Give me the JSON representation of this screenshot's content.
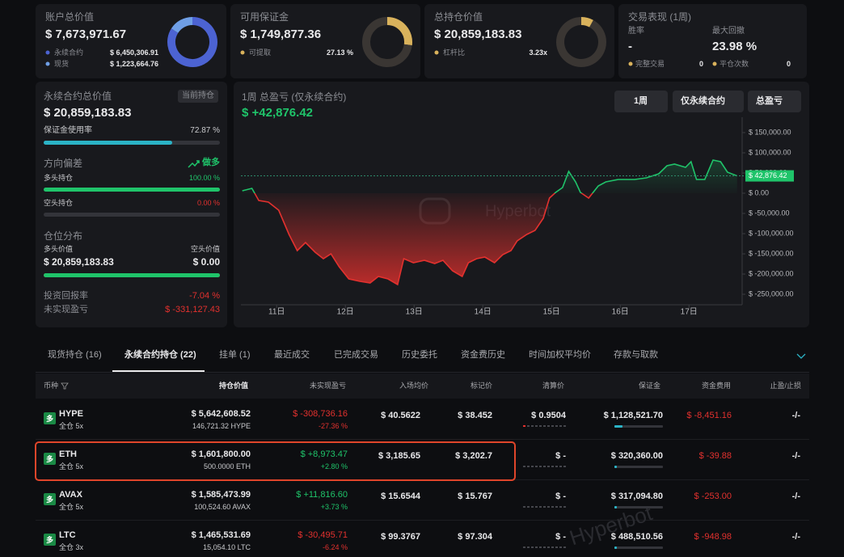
{
  "cards": [
    {
      "title": "账户总价值",
      "value": "$ 7,673,971.67",
      "items": [
        {
          "label": "永续合约",
          "value": "$ 6,450,306.91"
        },
        {
          "label": "现货",
          "value": "$ 1,223,664.76"
        }
      ],
      "donut": [
        6450306.91,
        1223664.76
      ],
      "colors": [
        "#4c63d2",
        "#6f9fe6"
      ]
    },
    {
      "title": "可用保证金",
      "value": "$ 1,749,877.36",
      "items": [
        {
          "label": "可提取",
          "value": "27.13 %"
        }
      ],
      "donut": [
        27.13,
        72.87
      ],
      "colors": [
        "#d9b25c",
        "#3a3633"
      ]
    },
    {
      "title": "总持仓价值",
      "value": "$ 20,859,183.83",
      "items": [
        {
          "label": "杠杆比",
          "value": "3.23x"
        }
      ],
      "donut": [
        8,
        92
      ],
      "colors": [
        "#d9b25c",
        "#3a3633"
      ]
    }
  ],
  "performance": {
    "title": "交易表现 (1周)",
    "stats": [
      {
        "label": "胜率",
        "value": "-"
      },
      {
        "label": "最大回撤",
        "value": "23.98 %"
      }
    ],
    "items": [
      {
        "label": "完整交易",
        "value": "0"
      },
      {
        "label": "平仓次数",
        "value": "0"
      }
    ]
  },
  "summary": {
    "title": "永续合约总价值",
    "badge": "当前持仓",
    "value": "$ 20,859,183.83",
    "margin": {
      "label": "保证金使用率",
      "value": 72.87,
      "value_label": "72.87 %"
    },
    "bias": {
      "title": "方向偏差",
      "direction": "做多",
      "long": {
        "label": "多头持仓",
        "value": 100,
        "value_label": "100.00 %"
      },
      "short": {
        "label": "空头持仓",
        "value": 0,
        "value_label": "0.00 %"
      }
    },
    "distribution": {
      "title": "仓位分布",
      "long_label": "多头价值",
      "long_value": "$ 20,859,183.83",
      "short_label": "空头价值",
      "short_value": "$ 0.00",
      "bar": [
        20859183.83,
        0
      ]
    },
    "roi": {
      "label": "投资回报率",
      "value": "-7.04 %"
    },
    "upnl": {
      "label": "未实现盈亏",
      "value": "$ -331,127.43"
    }
  },
  "chart_controls": [
    "1周",
    "仅永续合约",
    "总盈亏"
  ],
  "watermark": "Hyperbot",
  "chart_data": {
    "type": "line",
    "title": "1周 总盈亏 (仅永续合约)",
    "subtitle": "$ +42,876.42",
    "x": [
      10.5,
      10.64,
      10.74,
      10.88,
      11.03,
      11.18,
      11.3,
      11.42,
      11.56,
      11.68,
      11.79,
      11.91,
      12.05,
      12.21,
      12.36,
      12.48,
      12.62,
      12.76,
      12.85,
      12.99,
      13.15,
      13.3,
      13.42,
      13.56,
      13.7,
      13.79,
      13.91,
      14.03,
      14.17,
      14.29,
      14.41,
      14.5,
      14.64,
      14.76,
      14.88,
      14.97,
      15.06,
      15.16,
      15.25,
      15.35,
      15.42,
      15.54,
      15.68,
      15.79,
      15.97,
      16.21,
      16.38,
      16.56,
      16.68,
      16.79,
      16.95,
      17.03,
      17.11,
      17.23,
      17.35,
      17.46,
      17.56,
      17.7
    ],
    "values": [
      6000,
      12000,
      -18000,
      -22000,
      -42000,
      -102000,
      -142000,
      -122000,
      -146000,
      -162000,
      -150000,
      -182000,
      -212000,
      -218000,
      -222000,
      -206000,
      -212000,
      -226000,
      -162000,
      -172000,
      -166000,
      -174000,
      -166000,
      -192000,
      -206000,
      -172000,
      -162000,
      -158000,
      -172000,
      -152000,
      -142000,
      -118000,
      -102000,
      -92000,
      -62000,
      -12000,
      2000,
      14000,
      54000,
      28000,
      2000,
      -12000,
      18000,
      28000,
      34000,
      34000,
      38000,
      48000,
      68000,
      72000,
      64000,
      78000,
      34000,
      34000,
      82000,
      78000,
      52000,
      42876.42
    ],
    "current_label": "$ 42,876.42",
    "colors": {
      "up": "#1fc46a",
      "down": "#e3312e"
    },
    "xlim": [
      10.48,
      17.75
    ],
    "xticks": [
      {
        "value": 11,
        "label": "11日"
      },
      {
        "value": 12,
        "label": "12日"
      },
      {
        "value": 13,
        "label": "13日"
      },
      {
        "value": 14,
        "label": "14日"
      },
      {
        "value": 15,
        "label": "15日"
      },
      {
        "value": 16,
        "label": "16日"
      },
      {
        "value": 17,
        "label": "17日"
      }
    ],
    "ylim": [
      -272000,
      172000
    ],
    "yticks": [
      {
        "value": 150000,
        "label": "$ 150,000.00"
      },
      {
        "value": 100000,
        "label": "$ 100,000.00"
      },
      {
        "value": 50000,
        "label": "$ 50,000.00"
      },
      {
        "value": 0,
        "label": "$ 0.00"
      },
      {
        "value": -50000,
        "label": "$ -50,000.00"
      },
      {
        "value": -100000,
        "label": "$ -100,000.00"
      },
      {
        "value": -150000,
        "label": "$ -150,000.00"
      },
      {
        "value": -200000,
        "label": "$ -200,000.00"
      },
      {
        "value": -250000,
        "label": "$ -250,000.00"
      }
    ]
  },
  "tabs": {
    "items": [
      "现货持仓 (16)",
      "永续合约持仓 (22)",
      "挂单 (1)",
      "最近成交",
      "已完成交易",
      "历史委托",
      "资金费历史",
      "时间加权平均价",
      "存款与取款"
    ],
    "active": 1
  },
  "table": {
    "headers": [
      "币种",
      "持仓价值",
      "未实现盈亏",
      "入场均价",
      "标记价",
      "清算价",
      "保证金",
      "资金费用",
      "止盈/止损"
    ],
    "rows": [
      {
        "side": "多",
        "coin": "HYPE",
        "mode": "全仓 5x",
        "position_value": "$ 5,642,608.52",
        "size": "146,721.32 HYPE",
        "upnl": "$ -308,736.16",
        "upnl_pct": "-27.36 %",
        "entry": "$ 40.5622",
        "mark": "$ 38.452",
        "liq": "$ 0.9504",
        "margin": "$ 1,128,521.70",
        "funding": "$ -8,451.16",
        "tpsl": "-/-"
      },
      {
        "side": "多",
        "coin": "ETH",
        "mode": "全仓 5x",
        "position_value": "$ 1,601,800.00",
        "size": "500.0000 ETH",
        "upnl": "$ +8,973.47",
        "upnl_pct": "+2.80 %",
        "entry": "$ 3,185.65",
        "mark": "$ 3,202.7",
        "liq": "$ -",
        "margin": "$ 320,360.00",
        "funding": "$ -39.88",
        "tpsl": "-/-"
      },
      {
        "side": "多",
        "coin": "AVAX",
        "mode": "全仓 5x",
        "position_value": "$ 1,585,473.99",
        "size": "100,524.60 AVAX",
        "upnl": "$ +11,816.60",
        "upnl_pct": "+3.73 %",
        "entry": "$ 15.6544",
        "mark": "$ 15.767",
        "liq": "$ -",
        "margin": "$ 317,094.80",
        "funding": "$ -253.00",
        "tpsl": "-/-"
      },
      {
        "side": "多",
        "coin": "LTC",
        "mode": "全仓 3x",
        "position_value": "$ 1,465,531.69",
        "size": "15,054.10 LTC",
        "upnl": "$ -30,495.71",
        "upnl_pct": "-6.24 %",
        "entry": "$ 99.3767",
        "mark": "$ 97.304",
        "liq": "$ -",
        "margin": "$ 488,510.56",
        "funding": "$ -948.98",
        "tpsl": "-/-"
      }
    ]
  }
}
